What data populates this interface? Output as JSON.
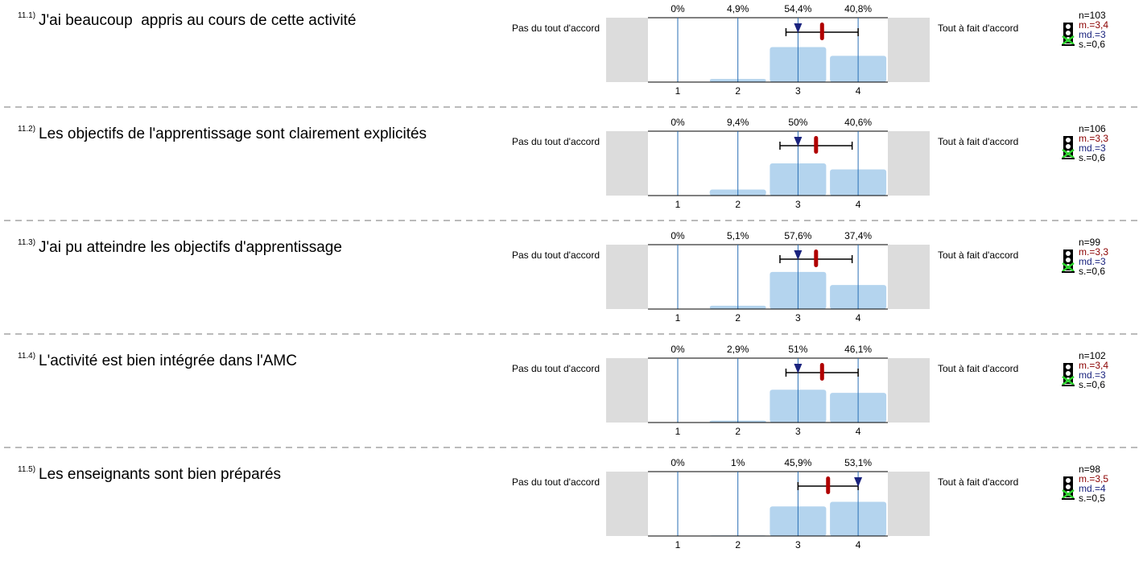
{
  "items": [
    {
      "number": "11.1)",
      "question": "J'ai beaucoup  appris au cours de cette activité",
      "left_label": "Pas du tout d'accord",
      "right_label": "Tout à fait d'accord",
      "scale": [
        1,
        2,
        3,
        4
      ],
      "percentages": [
        0,
        4.9,
        54.4,
        40.8
      ],
      "percentage_labels": [
        "0%",
        "4,9%",
        "54,4%",
        "40,8%"
      ],
      "stats": {
        "n": "n=103",
        "mean": {
          "value": 3.4,
          "label": "m.=3,4"
        },
        "median": {
          "value": 3,
          "label": "md.=3"
        },
        "sd": {
          "value": 0.6,
          "label": "s.=0,6"
        }
      }
    },
    {
      "number": "11.2)",
      "question": "Les objectifs de l'apprentissage sont clairement explicités",
      "left_label": "Pas du tout d'accord",
      "right_label": "Tout à fait d'accord",
      "scale": [
        1,
        2,
        3,
        4
      ],
      "percentages": [
        0,
        9.4,
        50,
        40.6
      ],
      "percentage_labels": [
        "0%",
        "9,4%",
        "50%",
        "40,6%"
      ],
      "stats": {
        "n": "n=106",
        "mean": {
          "value": 3.3,
          "label": "m.=3,3"
        },
        "median": {
          "value": 3,
          "label": "md.=3"
        },
        "sd": {
          "value": 0.6,
          "label": "s.=0,6"
        }
      }
    },
    {
      "number": "11.3)",
      "question": "J'ai pu atteindre les objectifs d'apprentissage",
      "left_label": "Pas du tout d'accord",
      "right_label": "Tout à fait d'accord",
      "scale": [
        1,
        2,
        3,
        4
      ],
      "percentages": [
        0,
        5.1,
        57.6,
        37.4
      ],
      "percentage_labels": [
        "0%",
        "5,1%",
        "57,6%",
        "37,4%"
      ],
      "stats": {
        "n": "n=99",
        "mean": {
          "value": 3.3,
          "label": "m.=3,3"
        },
        "median": {
          "value": 3,
          "label": "md.=3"
        },
        "sd": {
          "value": 0.6,
          "label": "s.=0,6"
        }
      }
    },
    {
      "number": "11.4)",
      "question": "L'activité est bien intégrée dans l'AMC",
      "left_label": "Pas du tout d'accord",
      "right_label": "Tout à fait d'accord",
      "scale": [
        1,
        2,
        3,
        4
      ],
      "percentages": [
        0,
        2.9,
        51,
        46.1
      ],
      "percentage_labels": [
        "0%",
        "2,9%",
        "51%",
        "46,1%"
      ],
      "stats": {
        "n": "n=102",
        "mean": {
          "value": 3.4,
          "label": "m.=3,4"
        },
        "median": {
          "value": 3,
          "label": "md.=3"
        },
        "sd": {
          "value": 0.6,
          "label": "s.=0,6"
        }
      }
    },
    {
      "number": "11.5)",
      "question": "Les enseignants sont bien préparés",
      "left_label": "Pas du tout d'accord",
      "right_label": "Tout à fait d'accord",
      "scale": [
        1,
        2,
        3,
        4
      ],
      "percentages": [
        0,
        1,
        45.9,
        53.1
      ],
      "percentage_labels": [
        "0%",
        "1%",
        "45,9%",
        "53,1%"
      ],
      "stats": {
        "n": "n=98",
        "mean": {
          "value": 3.5,
          "label": "m.=3,5"
        },
        "median": {
          "value": 4,
          "label": "md.=4"
        },
        "sd": {
          "value": 0.5,
          "label": "s.=0,5"
        }
      }
    }
  ]
}
